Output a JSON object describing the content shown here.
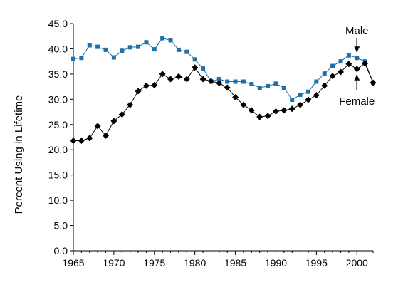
{
  "chart_data": {
    "type": "line",
    "title": "",
    "xlabel": "",
    "ylabel": "Percent Using in Lifetime",
    "xlim": [
      1965,
      2002
    ],
    "ylim": [
      0,
      45
    ],
    "yticks": [
      0,
      5,
      10,
      15,
      20,
      25,
      30,
      35,
      40,
      45
    ],
    "ytick_labels": [
      "0.0",
      "5.0",
      "10.0",
      "15.0",
      "20.0",
      "25.0",
      "30.0",
      "35.0",
      "40.0",
      "45.0"
    ],
    "xticks": [
      1965,
      1970,
      1975,
      1980,
      1985,
      1990,
      1995,
      2000
    ],
    "xtick_labels": [
      "1965",
      "1970",
      "1975",
      "1980",
      "1985",
      "1990",
      "1995",
      "2000"
    ],
    "grid": false,
    "legend": "none",
    "series": [
      {
        "name": "Male",
        "color": "#1f6fa8",
        "marker": "square",
        "x": [
          1965,
          1966,
          1967,
          1968,
          1969,
          1970,
          1971,
          1972,
          1973,
          1974,
          1975,
          1976,
          1977,
          1978,
          1979,
          1980,
          1981,
          1982,
          1983,
          1984,
          1985,
          1986,
          1987,
          1988,
          1989,
          1990,
          1991,
          1992,
          1993,
          1994,
          1995,
          1996,
          1997,
          1998,
          1999,
          2000,
          2001,
          2002
        ],
        "values": [
          38.0,
          38.2,
          40.7,
          40.4,
          39.8,
          38.3,
          39.6,
          40.3,
          40.4,
          41.3,
          39.9,
          42.1,
          41.7,
          39.8,
          39.4,
          37.9,
          36.1,
          33.5,
          34.0,
          33.5,
          33.5,
          33.5,
          33.0,
          32.3,
          32.6,
          33.1,
          32.3,
          29.9,
          30.9,
          31.5,
          33.5,
          35.1,
          36.6,
          37.5,
          38.7,
          38.2,
          37.5,
          33.3
        ]
      },
      {
        "name": "Female",
        "color": "#000000",
        "marker": "diamond",
        "x": [
          1965,
          1966,
          1967,
          1968,
          1969,
          1970,
          1971,
          1972,
          1973,
          1974,
          1975,
          1976,
          1977,
          1978,
          1979,
          1980,
          1981,
          1982,
          1983,
          1984,
          1985,
          1986,
          1987,
          1988,
          1989,
          1990,
          1991,
          1992,
          1993,
          1994,
          1995,
          1996,
          1997,
          1998,
          1999,
          2000,
          2001,
          2002
        ],
        "values": [
          21.8,
          21.8,
          22.3,
          24.7,
          22.8,
          25.7,
          27.0,
          28.9,
          31.6,
          32.7,
          32.8,
          35.0,
          34.0,
          34.5,
          34.0,
          36.3,
          34.0,
          33.6,
          33.2,
          32.3,
          30.4,
          28.9,
          27.8,
          26.5,
          26.7,
          27.6,
          27.8,
          28.1,
          28.9,
          29.9,
          30.8,
          32.7,
          34.6,
          35.4,
          37.0,
          36.0,
          37.1,
          33.3
        ]
      }
    ],
    "annotations": [
      {
        "text": "Male",
        "target_series": "Male",
        "target_x": 2000,
        "arrow": "down"
      },
      {
        "text": "Female",
        "target_series": "Female",
        "target_x": 2000,
        "arrow": "up"
      }
    ]
  }
}
